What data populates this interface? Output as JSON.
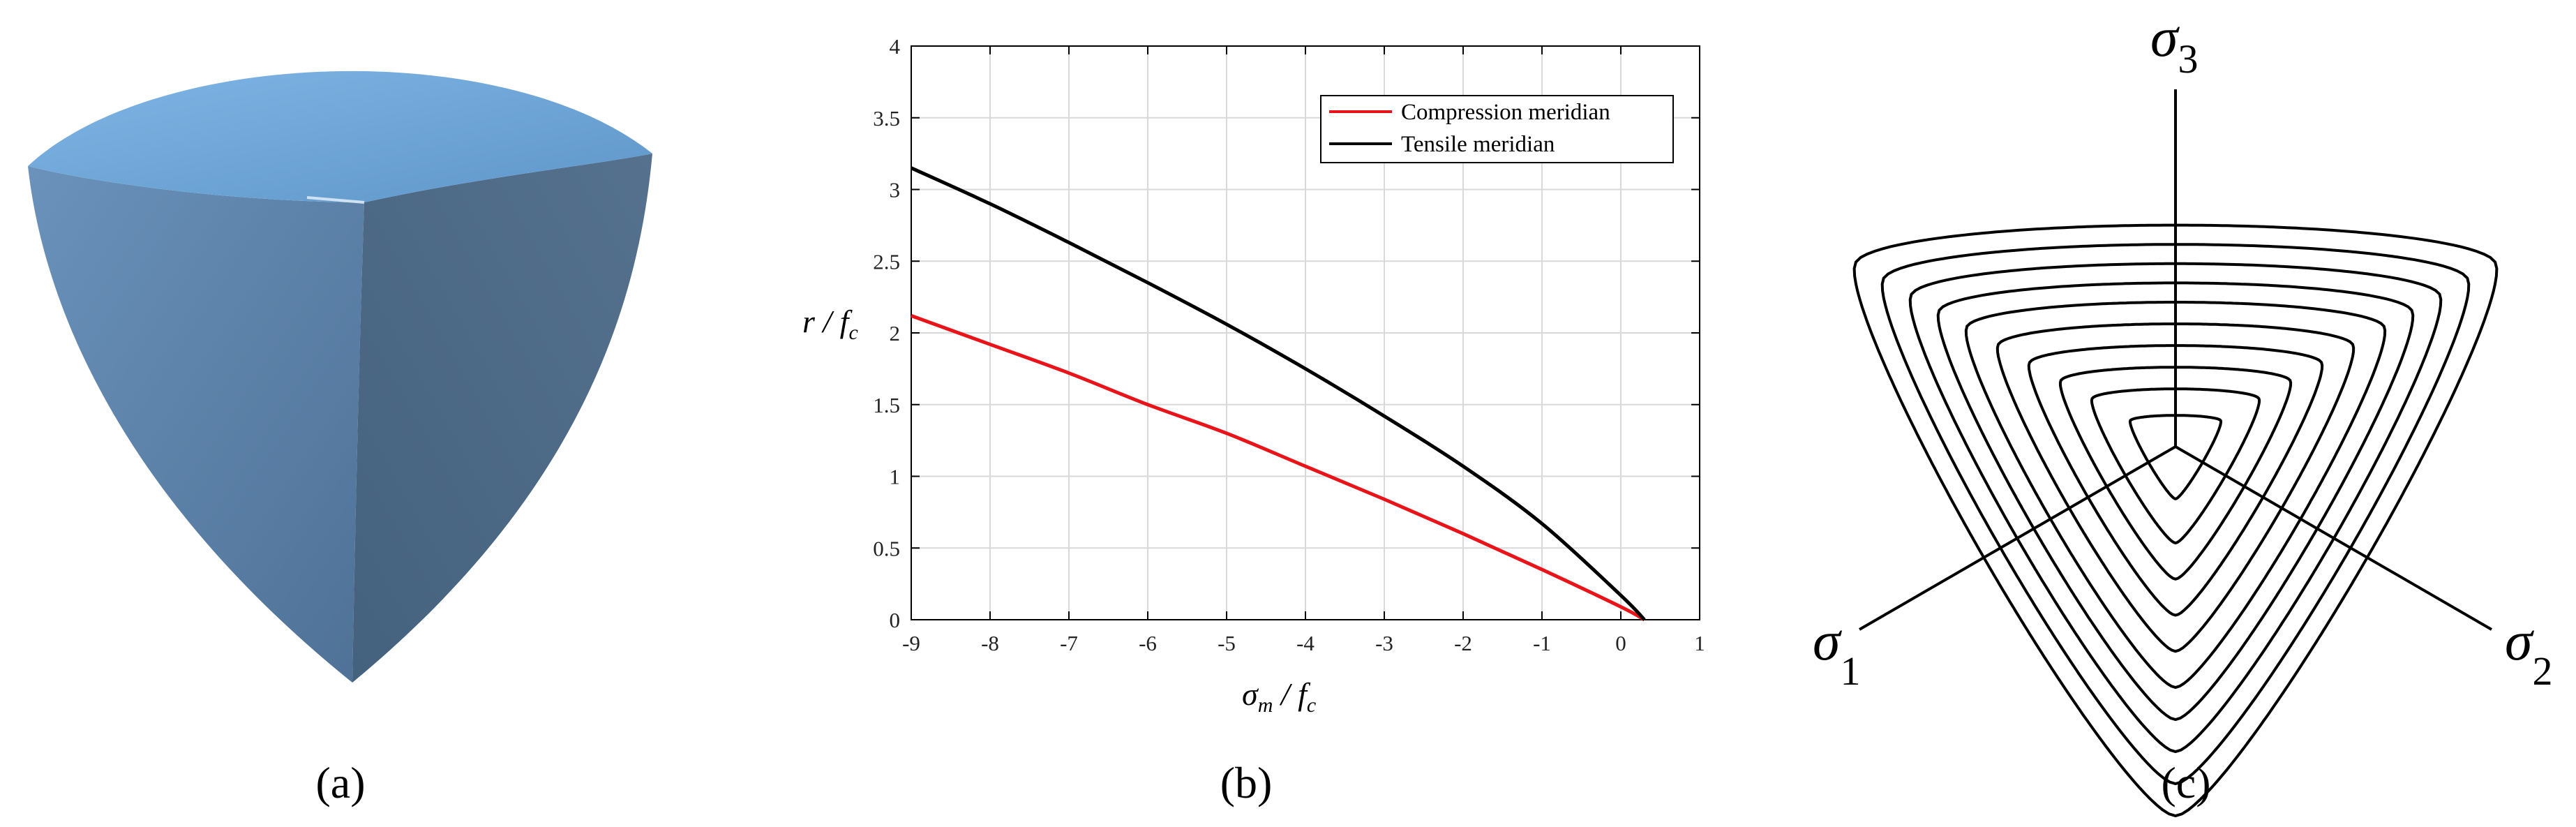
{
  "panels": {
    "a": {
      "label": "(a)"
    },
    "b": {
      "label": "(b)"
    },
    "c": {
      "label": "(c)"
    }
  },
  "colors": {
    "surface_top": "#6aa3d8",
    "surface_left": "#5b80a6",
    "surface_right": "#4a6a88",
    "compression": "#e8141a",
    "tensile": "#000000",
    "grid": "#d9d9d9"
  },
  "chart_data": [
    {
      "type": "line",
      "panel": "b",
      "xlabel": "σ_m / f_c",
      "ylabel": "r / f_c",
      "xlim": [
        -9,
        1
      ],
      "ylim": [
        0,
        4
      ],
      "xticks": [
        -9,
        -8,
        -7,
        -6,
        -5,
        -4,
        -3,
        -2,
        -1,
        0,
        1
      ],
      "yticks": [
        0,
        0.5,
        1,
        1.5,
        2,
        2.5,
        3,
        3.5,
        4
      ],
      "ytick_labels": [
        "0",
        "0.5",
        "1",
        "1.5",
        "2",
        "2.5",
        "3",
        "3.5",
        "4"
      ],
      "grid": true,
      "legend_position": "top-right",
      "series": [
        {
          "name": "Compression meridian",
          "color": "#e8141a",
          "x": [
            -9,
            -8,
            -7,
            -6,
            -5,
            -4,
            -3,
            -2,
            -1,
            0,
            0.3
          ],
          "y": [
            2.12,
            1.92,
            1.72,
            1.5,
            1.3,
            1.07,
            0.84,
            0.6,
            0.35,
            0.09,
            0.0
          ]
        },
        {
          "name": "Tensile meridian",
          "color": "#000000",
          "x": [
            -9,
            -8,
            -7,
            -6,
            -5,
            -4,
            -3,
            -2,
            -1,
            0,
            0.3
          ],
          "y": [
            3.15,
            2.9,
            2.63,
            2.35,
            2.06,
            1.75,
            1.42,
            1.07,
            0.67,
            0.17,
            0.0
          ]
        }
      ]
    },
    {
      "type": "diagram",
      "panel": "c",
      "axes": [
        {
          "label": "σ",
          "sub": "3"
        },
        {
          "label": "σ",
          "sub": "1"
        },
        {
          "label": "σ",
          "sub": "2"
        }
      ],
      "contour_count": 10,
      "contour_radii": [
        0.13,
        0.24,
        0.33,
        0.42,
        0.51,
        0.6,
        0.68,
        0.76,
        0.84,
        0.92
      ]
    }
  ]
}
